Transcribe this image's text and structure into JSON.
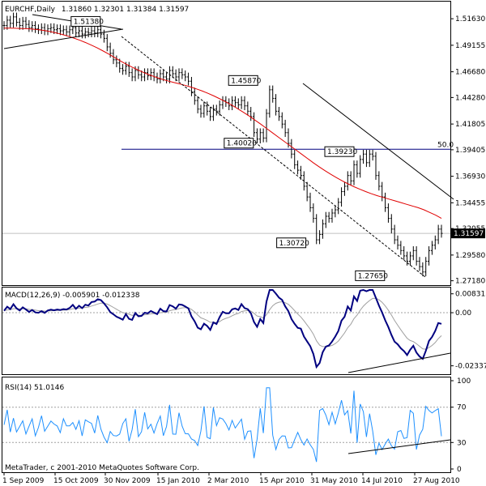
{
  "chart_data": [
    {
      "type": "candlestick",
      "header": {
        "symbol": "EURCHF,Daily",
        "values": "1.31860 1.32301 1.31384 1.31597"
      },
      "ylim": [
        1.27,
        1.53
      ],
      "y_ticks": [
        "1.51630",
        "1.49155",
        "1.46680",
        "1.44280",
        "1.41805",
        "1.39405",
        "1.36930",
        "1.34455",
        "1.32055",
        "1.29580",
        "1.27180"
      ],
      "y_tick_values": [
        1.5163,
        1.49155,
        1.4668,
        1.4428,
        1.41805,
        1.39405,
        1.3693,
        1.34455,
        1.32055,
        1.2958,
        1.2718
      ],
      "current_price": "1.31597",
      "current_price_value": 1.31597,
      "horizontal_line": {
        "value": 1.3945,
        "label": "50.0"
      },
      "price_labels": [
        {
          "text": "1.51380",
          "value": 1.5138,
          "x": 0.22
        },
        {
          "text": "1.45870",
          "value": 1.4587,
          "x": 0.58
        },
        {
          "text": "1.40020",
          "value": 1.4002,
          "x": 0.57
        },
        {
          "text": "1.39230",
          "value": 1.3923,
          "x": 0.8
        },
        {
          "text": "1.30720",
          "value": 1.3072,
          "x": 0.69
        },
        {
          "text": "1.27650",
          "value": 1.2765,
          "x": 0.87
        }
      ],
      "close": [
        1.51,
        1.515,
        1.512,
        1.518,
        1.513,
        1.51,
        1.514,
        1.511,
        1.508,
        1.51,
        1.507,
        1.506,
        1.508,
        1.505,
        1.507,
        1.508,
        1.506,
        1.507,
        1.505,
        1.506,
        1.504,
        1.506,
        1.508,
        1.503,
        1.505,
        1.502,
        1.504,
        1.503,
        1.505,
        1.503,
        1.506,
        1.502,
        1.498,
        1.49,
        1.484,
        1.478,
        1.475,
        1.47,
        1.468,
        1.472,
        1.466,
        1.462,
        1.468,
        1.464,
        1.462,
        1.466,
        1.463,
        1.466,
        1.462,
        1.46,
        1.465,
        1.462,
        1.46,
        1.468,
        1.465,
        1.462,
        1.466,
        1.464,
        1.462,
        1.458,
        1.448,
        1.44,
        1.432,
        1.428,
        1.435,
        1.43,
        1.425,
        1.432,
        1.43,
        1.436,
        1.44,
        1.438,
        1.435,
        1.44,
        1.438,
        1.436,
        1.44,
        1.435,
        1.43,
        1.425,
        1.41,
        1.404,
        1.41,
        1.405,
        1.428,
        1.45,
        1.442,
        1.43,
        1.425,
        1.418,
        1.41,
        1.4,
        1.39,
        1.38,
        1.375,
        1.37,
        1.36,
        1.35,
        1.34,
        1.33,
        1.31,
        1.315,
        1.325,
        1.332,
        1.33,
        1.335,
        1.338,
        1.345,
        1.355,
        1.36,
        1.37,
        1.365,
        1.38,
        1.372,
        1.385,
        1.39,
        1.382,
        1.39,
        1.388,
        1.37,
        1.36,
        1.35,
        1.34,
        1.33,
        1.32,
        1.31,
        1.305,
        1.3,
        1.295,
        1.29,
        1.295,
        1.3,
        1.29,
        1.285,
        1.28,
        1.29,
        1.3,
        1.305,
        1.31,
        1.32,
        1.316
      ],
      "ma": [
        1.5075,
        1.5075,
        1.5074,
        1.5072,
        1.507,
        1.5066,
        1.506,
        1.5052,
        1.5042,
        1.503,
        1.5016,
        1.5,
        1.4982,
        1.4962,
        1.494,
        1.4916,
        1.489,
        1.4862,
        1.4832,
        1.48,
        1.4768,
        1.4738,
        1.471,
        1.4684,
        1.466,
        1.4638,
        1.4618,
        1.46,
        1.4584,
        1.457,
        1.4556,
        1.4542,
        1.4526,
        1.4508,
        1.4488,
        1.4466,
        1.4442,
        1.4416,
        1.4388,
        1.4358,
        1.4326,
        1.4292,
        1.4256,
        1.4218,
        1.418,
        1.414,
        1.41,
        1.406,
        1.402,
        1.398,
        1.394,
        1.39,
        1.386,
        1.382,
        1.3782,
        1.3746,
        1.3712,
        1.368,
        1.365,
        1.3622,
        1.3596,
        1.3572,
        1.355,
        1.353,
        1.3512,
        1.3496,
        1.348,
        1.3464,
        1.3448,
        1.3432,
        1.3416,
        1.34,
        1.338,
        1.3355,
        1.333,
        1.33
      ],
      "macd": {
        "title": "MACD(12,26,9) -0.005901 -0.012338",
        "y_ticks": [
          "0.008315",
          "0.00",
          "-0.023371"
        ],
        "y_tick_values": [
          0.008315,
          0.0,
          -0.023371
        ],
        "ylim": [
          -0.026,
          0.01
        ]
      },
      "rsi": {
        "title": "RSI(14) 51.0146",
        "y_ticks": [
          "100",
          "70",
          "30",
          "0"
        ],
        "y_tick_values": [
          100,
          70,
          30,
          0
        ],
        "ylim": [
          0,
          100
        ]
      },
      "x_ticks": [
        "1 Sep 2009",
        "15 Oct 2009",
        "30 Nov 2009",
        "15 Jan 2010",
        "2 Mar 2010",
        "15 Apr 2010",
        "31 May 2010",
        "14 Jul 2010",
        "27 Aug 2010"
      ],
      "copyright": "MetaTrader, c 2001-2010 MetaQuotes Software Corp."
    }
  ]
}
